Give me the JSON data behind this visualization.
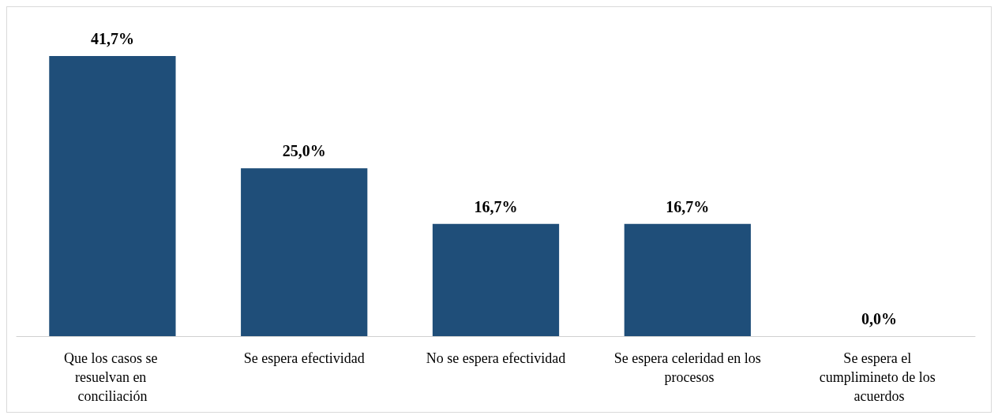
{
  "chart_data": {
    "type": "bar",
    "categories": [
      "Que los casos se resuelvan en conciliación",
      "Se espera efectividad",
      "No se espera efectividad",
      "Se espera celeridad en los procesos",
      "Se espera el cumplimineto de los acuerdos"
    ],
    "values": [
      41.7,
      25.0,
      16.7,
      16.7,
      0.0
    ],
    "value_labels": [
      "41,7%",
      "25,0%",
      "16,7%",
      "16,7%",
      "0,0%"
    ],
    "color": "#1f4e79"
  }
}
